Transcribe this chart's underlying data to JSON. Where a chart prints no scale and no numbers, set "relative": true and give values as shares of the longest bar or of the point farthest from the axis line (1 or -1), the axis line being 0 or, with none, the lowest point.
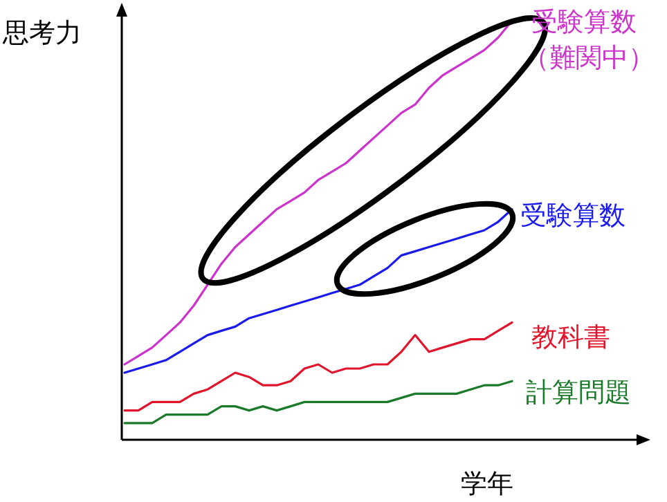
{
  "chart_data": {
    "type": "line",
    "relative": true,
    "xlabel": "学年",
    "ylabel": "思考力",
    "categories": [
      null,
      null,
      null,
      null,
      null,
      null,
      null,
      null,
      null,
      null,
      null,
      null,
      null,
      null,
      null,
      null,
      null,
      null,
      null,
      null,
      null,
      null,
      null,
      null,
      null,
      null,
      null,
      null,
      null
    ],
    "series": [
      {
        "name": "受験算数（難関中）",
        "color": "#cc33cc",
        "values": [
          0.18,
          0.2,
          0.22,
          0.25,
          0.28,
          0.32,
          0.37,
          0.42,
          0.46,
          0.49,
          0.52,
          0.55,
          0.57,
          0.59,
          0.62,
          0.64,
          0.66,
          0.69,
          0.72,
          0.75,
          0.78,
          0.8,
          0.84,
          0.87,
          0.89,
          0.91,
          0.93,
          0.96,
          1
        ]
      },
      {
        "name": "受験算数",
        "color": "#1a1aee",
        "values": [
          0.16,
          0.17,
          0.18,
          0.19,
          0.21,
          0.23,
          0.25,
          0.26,
          0.27,
          0.29,
          0.3,
          0.31,
          0.32,
          0.33,
          0.34,
          0.35,
          0.36,
          0.37,
          0.39,
          0.41,
          0.44,
          0.45,
          0.46,
          0.47,
          0.48,
          0.49,
          0.5,
          0.52,
          0.55
        ]
      },
      {
        "name": "教科書",
        "color": "#e0142a",
        "values": [
          0.07,
          0.07,
          0.09,
          0.09,
          0.09,
          0.11,
          0.12,
          0.14,
          0.16,
          0.15,
          0.13,
          0.13,
          0.14,
          0.17,
          0.18,
          0.16,
          0.17,
          0.17,
          0.18,
          0.18,
          0.21,
          0.25,
          0.21,
          0.22,
          0.23,
          0.24,
          0.24,
          0.26,
          0.28
        ]
      },
      {
        "name": "計算問題",
        "color": "#1a7a2a",
        "values": [
          0.04,
          0.04,
          0.04,
          0.06,
          0.06,
          0.06,
          0.06,
          0.08,
          0.08,
          0.07,
          0.08,
          0.07,
          0.08,
          0.09,
          0.09,
          0.09,
          0.09,
          0.09,
          0.09,
          0.09,
          0.1,
          0.11,
          0.11,
          0.11,
          0.11,
          0.12,
          0.13,
          0.13,
          0.14
        ]
      }
    ]
  }
}
